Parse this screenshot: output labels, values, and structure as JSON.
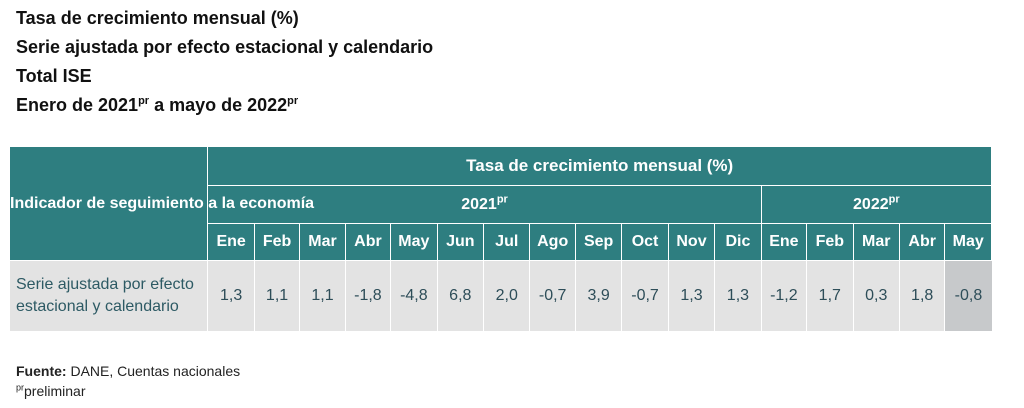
{
  "titles": {
    "line1": "Tasa de crecimiento mensual (%)",
    "line2": "Serie ajustada por efecto estacional y calendario",
    "line3": "Total ISE",
    "line4_pre": "Enero de 2021",
    "line4_sup1": "pr",
    "line4_mid": "a mayo de 2022",
    "line4_sup2": "pr"
  },
  "table": {
    "corner_header": "Indicador de seguimiento a la economía",
    "group_header": "Tasa de crecimiento mensual (%)",
    "year_2021": "2021",
    "year_2022": "2022",
    "year_sup": "pr",
    "months": [
      "Ene",
      "Feb",
      "Mar",
      "Abr",
      "May",
      "Jun",
      "Jul",
      "Ago",
      "Sep",
      "Oct",
      "Nov",
      "Dic",
      "Ene",
      "Feb",
      "Mar",
      "Abr",
      "May"
    ],
    "row_label": "Serie ajustada por efecto estacional y calendario",
    "values": [
      "1,3",
      "1,1",
      "1,1",
      "-1,8",
      "-4,8",
      "6,8",
      "2,0",
      "-0,7",
      "3,9",
      "-0,7",
      "1,3",
      "1,3",
      "-1,2",
      "1,7",
      "0,3",
      "1,8",
      "-0,8"
    ],
    "highlight_color": "#223d4d",
    "header_color": "#2e7e80"
  },
  "footer": {
    "source_label": "Fuente:",
    "source_text": " DANE, Cuentas nacionales",
    "note_sup": "pr",
    "note_text": "preliminar"
  }
}
